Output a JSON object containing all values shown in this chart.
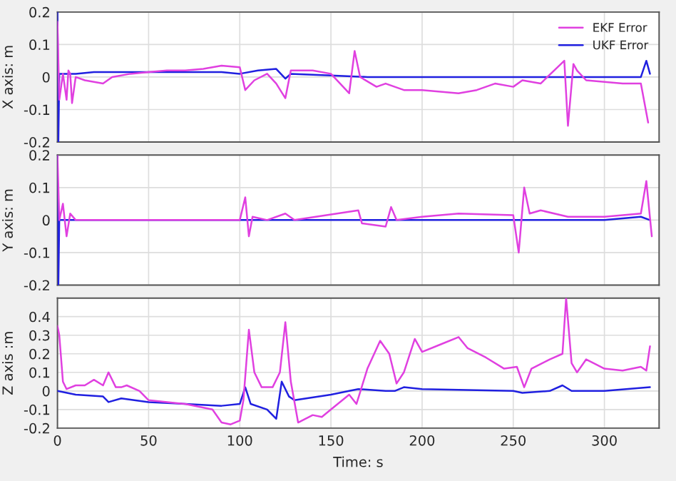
{
  "chart_data": [
    {
      "type": "line",
      "ylabel": "X axis: m",
      "xlim": [
        0,
        330
      ],
      "xticks": [
        0,
        50,
        100,
        150,
        200,
        250,
        300
      ],
      "ylim": [
        -0.2,
        0.2
      ],
      "yticks": [
        -0.2,
        -0.1,
        0,
        0.1,
        0.2
      ],
      "grid": true,
      "legend": "top right",
      "tick_labels": "y",
      "series": [
        {
          "name": "EKF Error",
          "color": "#e040e0",
          "x": [
            0,
            1,
            3,
            5,
            6,
            7,
            8,
            10,
            15,
            20,
            25,
            30,
            40,
            50,
            60,
            70,
            80,
            90,
            100,
            103,
            108,
            115,
            120,
            125,
            128,
            140,
            150,
            160,
            163,
            166,
            175,
            180,
            190,
            200,
            210,
            220,
            230,
            240,
            250,
            255,
            265,
            278,
            280,
            283,
            285,
            290,
            300,
            310,
            320,
            324
          ],
          "values": [
            0.17,
            -0.07,
            0.01,
            -0.07,
            0.02,
            0.01,
            -0.08,
            0,
            -0.01,
            -0.015,
            -0.02,
            0,
            0.01,
            0.015,
            0.02,
            0.02,
            0.025,
            0.035,
            0.03,
            -0.04,
            -0.01,
            0.01,
            -0.02,
            -0.065,
            0.02,
            0.02,
            0.01,
            -0.05,
            0.08,
            0,
            -0.03,
            -0.02,
            -0.04,
            -0.04,
            -0.045,
            -0.05,
            -0.04,
            -0.02,
            -0.03,
            -0.01,
            -0.02,
            0.05,
            -0.15,
            0.04,
            0.02,
            -0.01,
            -0.015,
            -0.02,
            -0.02,
            -0.14
          ]
        },
        {
          "name": "UKF Error",
          "color": "#2020e0",
          "x": [
            0,
            0.5,
            1,
            10,
            20,
            50,
            90,
            100,
            110,
            120,
            125,
            128,
            150,
            170,
            200,
            250,
            300,
            320,
            323,
            325
          ],
          "values": [
            0.2,
            -0.2,
            0.01,
            0.01,
            0.015,
            0.015,
            0.015,
            0.01,
            0.02,
            0.025,
            -0.005,
            0.01,
            0.005,
            0,
            0,
            0,
            0,
            0,
            0.05,
            0.01
          ]
        }
      ]
    },
    {
      "type": "line",
      "ylabel": "Y axis: m",
      "xlim": [
        0,
        330
      ],
      "xticks": [
        0,
        50,
        100,
        150,
        200,
        250,
        300
      ],
      "ylim": [
        -0.2,
        0.2
      ],
      "yticks": [
        -0.2,
        -0.1,
        0,
        0.1,
        0.2
      ],
      "grid": true,
      "tick_labels": "y",
      "series": [
        {
          "color": "#e040e0",
          "x": [
            0,
            1,
            3,
            5,
            7,
            10,
            50,
            100,
            103,
            105,
            107,
            115,
            125,
            130,
            165,
            167,
            180,
            183,
            186,
            200,
            220,
            250,
            253,
            256,
            259,
            265,
            280,
            300,
            320,
            323,
            326
          ],
          "values": [
            0.2,
            0,
            0.05,
            -0.05,
            0.02,
            0,
            0,
            0,
            0.07,
            -0.05,
            0.01,
            0,
            0.02,
            0,
            0.03,
            -0.01,
            -0.02,
            0.04,
            0,
            0.01,
            0.02,
            0.015,
            -0.1,
            0.1,
            0.02,
            0.03,
            0.01,
            0.01,
            0.02,
            0.12,
            -0.05
          ]
        },
        {
          "color": "#2020e0",
          "x": [
            0,
            0.5,
            1,
            100,
            150,
            250,
            300,
            320,
            325
          ],
          "values": [
            0.2,
            -0.2,
            0,
            0,
            0,
            0,
            0,
            0.01,
            0
          ]
        }
      ]
    },
    {
      "type": "line",
      "ylabel": "Z axis :m",
      "xlabel": "Time: s",
      "xlim": [
        0,
        330
      ],
      "xticks": [
        0,
        50,
        100,
        150,
        200,
        250,
        300
      ],
      "ylim": [
        -0.2,
        0.5
      ],
      "yticks": [
        -0.2,
        -0.1,
        0,
        0.1,
        0.2,
        0.3,
        0.4
      ],
      "grid": true,
      "series": [
        {
          "color": "#e040e0",
          "x": [
            0,
            1,
            3,
            5,
            10,
            15,
            20,
            25,
            28,
            32,
            35,
            38,
            45,
            50,
            70,
            85,
            90,
            95,
            100,
            102,
            105,
            108,
            112,
            118,
            122,
            125,
            128,
            132,
            140,
            145,
            150,
            160,
            164,
            170,
            177,
            182,
            186,
            190,
            196,
            200,
            210,
            220,
            225,
            235,
            245,
            252,
            256,
            260,
            270,
            277,
            279,
            282,
            285,
            290,
            300,
            310,
            320,
            323,
            325
          ],
          "values": [
            0.35,
            0.3,
            0.05,
            0.01,
            0.03,
            0.03,
            0.06,
            0.03,
            0.1,
            0.02,
            0.02,
            0.03,
            0.0,
            -0.05,
            -0.07,
            -0.1,
            -0.17,
            -0.18,
            -0.16,
            -0.05,
            0.33,
            0.1,
            0.02,
            0.02,
            0.1,
            0.37,
            0.05,
            -0.17,
            -0.13,
            -0.14,
            -0.1,
            -0.02,
            -0.07,
            0.12,
            0.27,
            0.2,
            0.04,
            0.1,
            0.28,
            0.21,
            0.25,
            0.29,
            0.23,
            0.18,
            0.12,
            0.13,
            0.02,
            0.12,
            0.17,
            0.2,
            0.5,
            0.15,
            0.1,
            0.17,
            0.12,
            0.11,
            0.13,
            0.11,
            0.24
          ]
        },
        {
          "color": "#2020e0",
          "x": [
            0,
            10,
            25,
            28,
            35,
            50,
            70,
            90,
            100,
            103,
            106,
            115,
            120,
            123,
            127,
            130,
            150,
            160,
            165,
            180,
            185,
            190,
            200,
            250,
            255,
            270,
            277,
            282,
            300,
            325
          ],
          "values": [
            0,
            -0.02,
            -0.03,
            -0.06,
            -0.04,
            -0.06,
            -0.07,
            -0.08,
            -0.07,
            0.02,
            -0.07,
            -0.1,
            -0.15,
            0.05,
            -0.03,
            -0.05,
            -0.02,
            0,
            0.01,
            0,
            0.0,
            0.02,
            0.01,
            0.0,
            -0.01,
            0,
            0.03,
            0,
            0,
            0.02
          ]
        }
      ]
    }
  ]
}
